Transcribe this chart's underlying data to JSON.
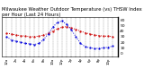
{
  "title": "Milwaukee Weather Outdoor Temperature (vs) THSW Index per Hour (Last 24 Hours)",
  "title_fontsize": 3.8,
  "background_color": "#ffffff",
  "grid_color": "#888888",
  "hours": [
    0,
    1,
    2,
    3,
    4,
    5,
    6,
    7,
    8,
    9,
    10,
    11,
    12,
    13,
    14,
    15,
    16,
    17,
    18,
    19,
    20,
    21,
    22,
    23
  ],
  "temp": [
    36,
    35,
    33,
    32,
    31,
    30,
    30,
    31,
    33,
    36,
    40,
    44,
    47,
    48,
    46,
    43,
    40,
    37,
    35,
    33,
    32,
    31,
    31,
    30
  ],
  "thsw": [
    30,
    24,
    22,
    20,
    18,
    17,
    16,
    18,
    25,
    35,
    47,
    56,
    58,
    52,
    42,
    30,
    18,
    12,
    10,
    9,
    9,
    10,
    11,
    13
  ],
  "temp_color": "#cc0000",
  "thsw_color": "#0000dd",
  "ylim_min": -5,
  "ylim_max": 65,
  "ytick_vals": [
    0,
    10,
    20,
    30,
    40,
    50,
    60
  ],
  "ytick_labels": [
    "0",
    "10",
    "20",
    "30",
    "40",
    "50",
    "60"
  ],
  "ylabel_fontsize": 3.2,
  "xlabel_fontsize": 2.8,
  "line_width": 0.7,
  "marker_size": 1.2,
  "fig_width": 1.6,
  "fig_height": 0.87,
  "dpi": 100
}
